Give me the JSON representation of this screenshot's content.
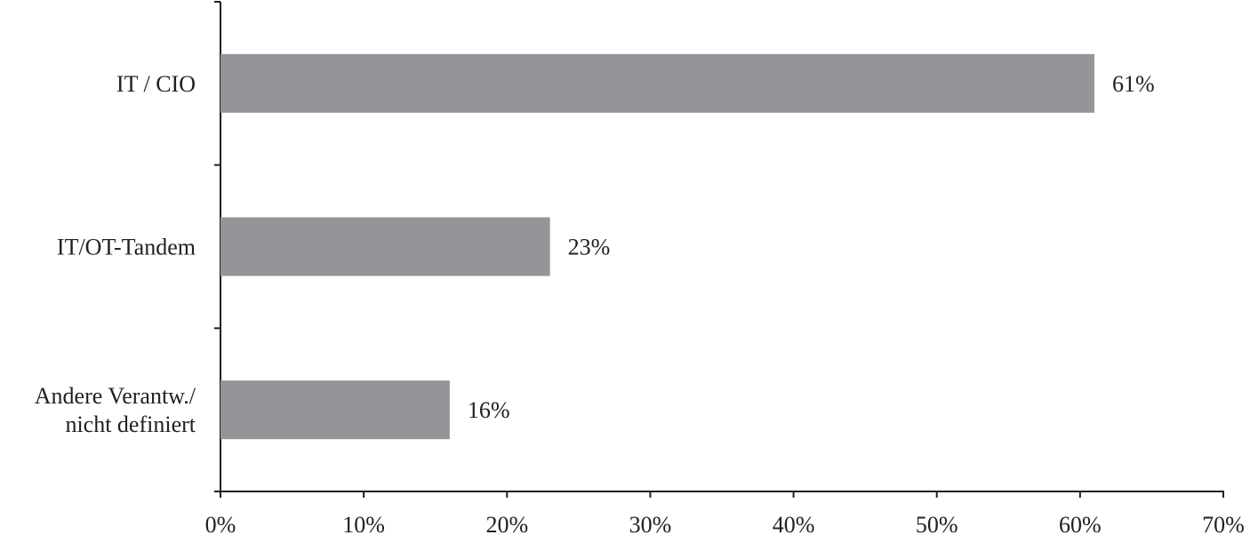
{
  "chart_data": {
    "type": "bar",
    "orientation": "horizontal",
    "categories": [
      "IT / CIO",
      "IT/OT-Tandem",
      "Andere Verantw./\nnicht definiert"
    ],
    "values": [
      61,
      23,
      16
    ],
    "value_labels": [
      "61%",
      "23%",
      "16%"
    ],
    "color": "#939598",
    "xlim": [
      0,
      70
    ],
    "xticks": [
      {
        "value": 0,
        "label": "0%"
      },
      {
        "value": 10,
        "label": "10%"
      },
      {
        "value": 20,
        "label": "20%"
      },
      {
        "value": 30,
        "label": "30%"
      },
      {
        "value": 40,
        "label": "40%"
      },
      {
        "value": 50,
        "label": "50%"
      },
      {
        "value": 60,
        "label": "60%"
      },
      {
        "value": 70,
        "label": "70%"
      }
    ],
    "grid": false
  }
}
